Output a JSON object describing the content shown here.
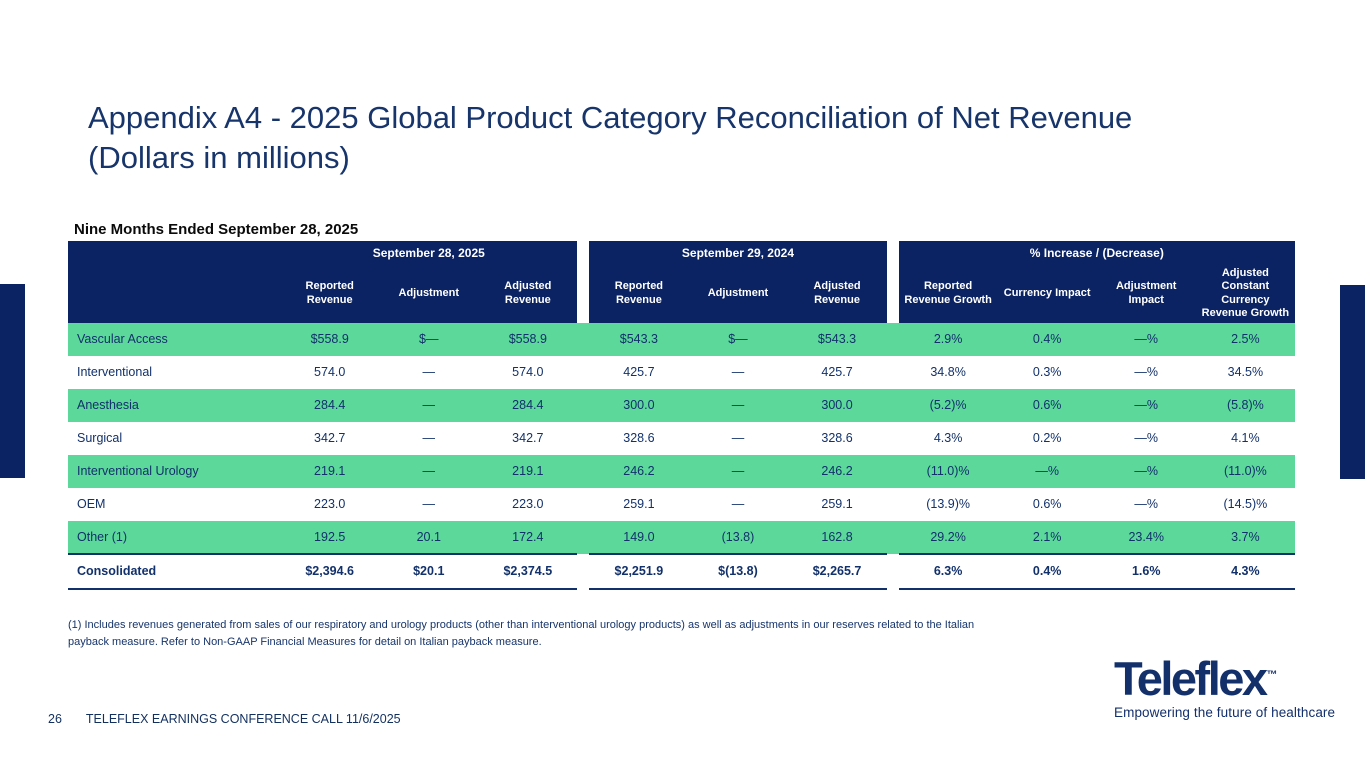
{
  "slide": {
    "title": "Appendix A4 - 2025 Global Product Category Reconciliation of Net Revenue (Dollars in millions)",
    "table_caption": "Nine Months Ended September 28, 2025",
    "footnote": "(1) Includes revenues generated from sales of our respiratory and urology products (other than interventional urology products) as well as adjustments in our reserves related to the Italian payback measure. Refer to Non-GAAP Financial Measures for detail on Italian payback measure.",
    "page_number": "26",
    "footer_text": "TELEFLEX EARNINGS CONFERENCE CALL 11/6/2025",
    "logo": {
      "wordmark": "Teleflex",
      "trademark": "™",
      "tagline": "Empowering the future of healthcare"
    }
  },
  "colors": {
    "navy": "#0b2363",
    "row_green": "#5cd89b",
    "title_navy": "#17356b"
  },
  "table": {
    "groups": [
      {
        "title": "September 28, 2025",
        "cols": [
          "Reported Revenue",
          "Adjustment",
          "Adjusted Revenue"
        ]
      },
      {
        "title": "September 29, 2024",
        "cols": [
          "Reported Revenue",
          "Adjustment",
          "Adjusted Revenue"
        ]
      },
      {
        "title": "% Increase / (Decrease)",
        "cols": [
          "Reported Revenue Growth",
          "Currency Impact",
          "Adjustment Impact",
          "Adjusted Constant Currency Revenue Growth"
        ]
      }
    ],
    "rows": [
      {
        "label": "Vascular Access",
        "is_total": false,
        "values": [
          "$558.9",
          "$—",
          "$558.9",
          "$543.3",
          "$—",
          "$543.3",
          "2.9%",
          "0.4%",
          "—%",
          "2.5%"
        ]
      },
      {
        "label": "Interventional",
        "is_total": false,
        "values": [
          "574.0",
          "—",
          "574.0",
          "425.7",
          "—",
          "425.7",
          "34.8%",
          "0.3%",
          "—%",
          "34.5%"
        ]
      },
      {
        "label": "Anesthesia",
        "is_total": false,
        "values": [
          "284.4",
          "—",
          "284.4",
          "300.0",
          "—",
          "300.0",
          "(5.2)%",
          "0.6%",
          "—%",
          "(5.8)%"
        ]
      },
      {
        "label": "Surgical",
        "is_total": false,
        "values": [
          "342.7",
          "—",
          "342.7",
          "328.6",
          "—",
          "328.6",
          "4.3%",
          "0.2%",
          "—%",
          "4.1%"
        ]
      },
      {
        "label": "Interventional Urology",
        "is_total": false,
        "values": [
          "219.1",
          "—",
          "219.1",
          "246.2",
          "—",
          "246.2",
          "(11.0)%",
          "—%",
          "—%",
          "(11.0)%"
        ]
      },
      {
        "label": "OEM",
        "is_total": false,
        "values": [
          "223.0",
          "—",
          "223.0",
          "259.1",
          "—",
          "259.1",
          "(13.9)%",
          "0.6%",
          "—%",
          "(14.5)%"
        ]
      },
      {
        "label": "Other (1)",
        "is_total": false,
        "values": [
          "192.5",
          "20.1",
          "172.4",
          "149.0",
          "(13.8)",
          "162.8",
          "29.2%",
          "2.1%",
          "23.4%",
          "3.7%"
        ]
      },
      {
        "label": "Consolidated",
        "is_total": true,
        "values": [
          "$2,394.6",
          "$20.1",
          "$2,374.5",
          "$2,251.9",
          "$(13.8)",
          "$2,265.7",
          "6.3%",
          "0.4%",
          "1.6%",
          "4.3%"
        ]
      }
    ]
  }
}
